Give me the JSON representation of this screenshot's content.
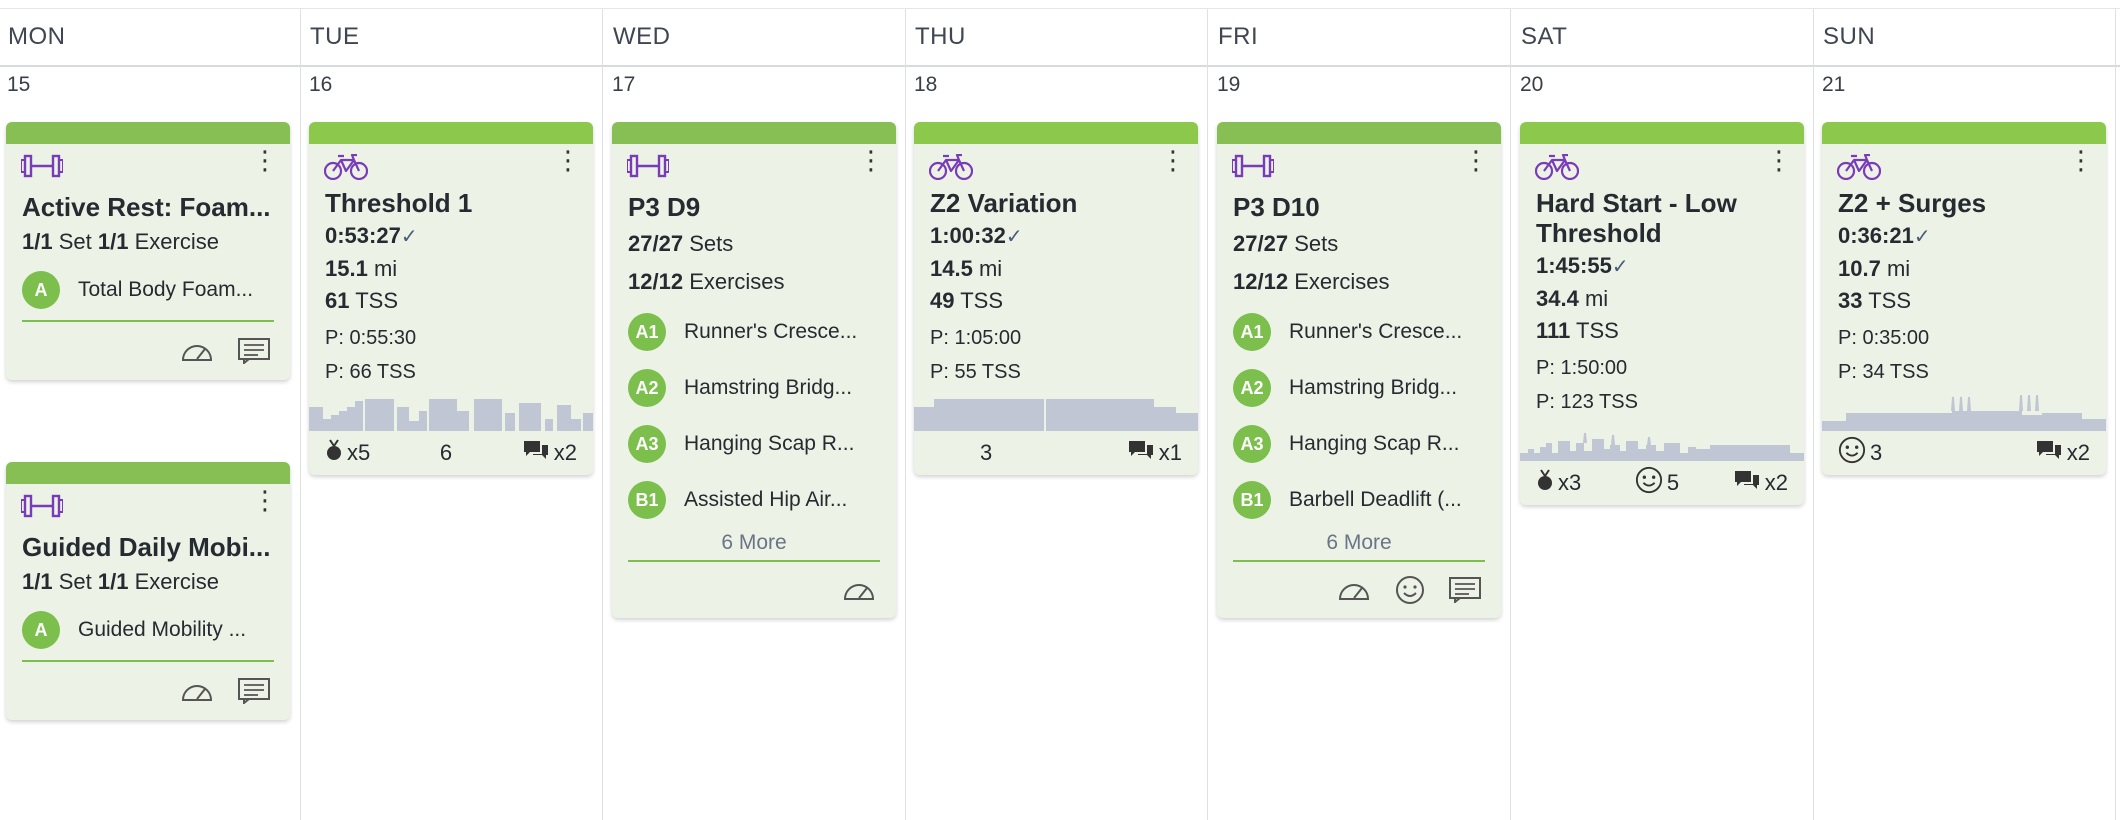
{
  "days": [
    {
      "name": "MON",
      "num": "15"
    },
    {
      "name": "TUE",
      "num": "16"
    },
    {
      "name": "WED",
      "num": "17"
    },
    {
      "name": "THU",
      "num": "18"
    },
    {
      "name": "FRI",
      "num": "19"
    },
    {
      "name": "SAT",
      "num": "20"
    },
    {
      "name": "SUN",
      "num": "21"
    }
  ],
  "colors": {
    "brand_green": "#8cc84b",
    "card_bg": "#ecf3e6",
    "purple": "#7a3bb8",
    "chart_gray": "#c1c6d4",
    "badge_green": "#7cbf4d"
  },
  "cards": {
    "mon1": {
      "title": "Active Rest: Foam...",
      "sets": "1/1",
      "sets_label": "Set",
      "exercises": "1/1",
      "exercises_label": "Exercise",
      "items": [
        {
          "badge": "A",
          "name": "Total Body Foam..."
        }
      ]
    },
    "mon2": {
      "title": "Guided Daily Mobi...",
      "sets": "1/1",
      "sets_label": "Set",
      "exercises": "1/1",
      "exercises_label": "Exercise",
      "items": [
        {
          "badge": "A",
          "name": "Guided Mobility ..."
        }
      ]
    },
    "tue": {
      "title": "Threshold 1",
      "duration": "0:53:27",
      "check": "✓",
      "distance": "15.1",
      "distance_unit": "mi",
      "tss": "61",
      "tss_unit": "TSS",
      "planned_duration": "P: 0:55:30",
      "planned_tss": "P: 66 TSS",
      "footer": {
        "medals": "x5",
        "count": "6",
        "comments": "x2"
      }
    },
    "wed": {
      "title": "P3 D9",
      "sets": "27/27",
      "sets_label": "Sets",
      "exercises": "12/12",
      "exercises_label": "Exercises",
      "items": [
        {
          "badge": "A1",
          "name": "Runner's Cresce..."
        },
        {
          "badge": "A2",
          "name": "Hamstring Bridg..."
        },
        {
          "badge": "A3",
          "name": "Hanging Scap R..."
        },
        {
          "badge": "B1",
          "name": "Assisted Hip Air..."
        }
      ],
      "more": "6 More"
    },
    "thu": {
      "title": "Z2 Variation",
      "duration": "1:00:32",
      "check": "✓",
      "distance": "14.5",
      "distance_unit": "mi",
      "tss": "49",
      "tss_unit": "TSS",
      "planned_duration": "P: 1:05:00",
      "planned_tss": "P: 55 TSS",
      "footer": {
        "count": "3",
        "comments": "x1"
      }
    },
    "fri": {
      "title": "P3 D10",
      "sets": "27/27",
      "sets_label": "Sets",
      "exercises": "12/12",
      "exercises_label": "Exercises",
      "items": [
        {
          "badge": "A1",
          "name": "Runner's Cresce..."
        },
        {
          "badge": "A2",
          "name": "Hamstring Bridg..."
        },
        {
          "badge": "A3",
          "name": "Hanging Scap R..."
        },
        {
          "badge": "B1",
          "name": "Barbell Deadlift (..."
        }
      ],
      "more": "6 More"
    },
    "sat": {
      "title": "Hard Start - Low Threshold",
      "duration": "1:45:55",
      "check": "✓",
      "distance": "34.4",
      "distance_unit": "mi",
      "tss": "111",
      "tss_unit": "TSS",
      "planned_duration": "P: 1:50:00",
      "planned_tss": "P: 123 TSS",
      "footer": {
        "medals": "x3",
        "feel": "5",
        "comments": "x2"
      }
    },
    "sun": {
      "title": "Z2 + Surges",
      "duration": "0:36:21",
      "check": "✓",
      "distance": "10.7",
      "distance_unit": "mi",
      "tss": "33",
      "tss_unit": "TSS",
      "planned_duration": "P: 0:35:00",
      "planned_tss": "P: 34 TSS",
      "footer": {
        "feel": "3",
        "comments": "x2"
      }
    }
  },
  "icons": {
    "strength": "dumbbell-icon",
    "bike": "bike-icon",
    "menu": "kebab-menu-icon",
    "speed": "speedometer-icon",
    "comment": "comment-icon",
    "medal": "medal-icon",
    "smiley": "smiley-icon",
    "chat": "chat-bubbles-icon"
  }
}
